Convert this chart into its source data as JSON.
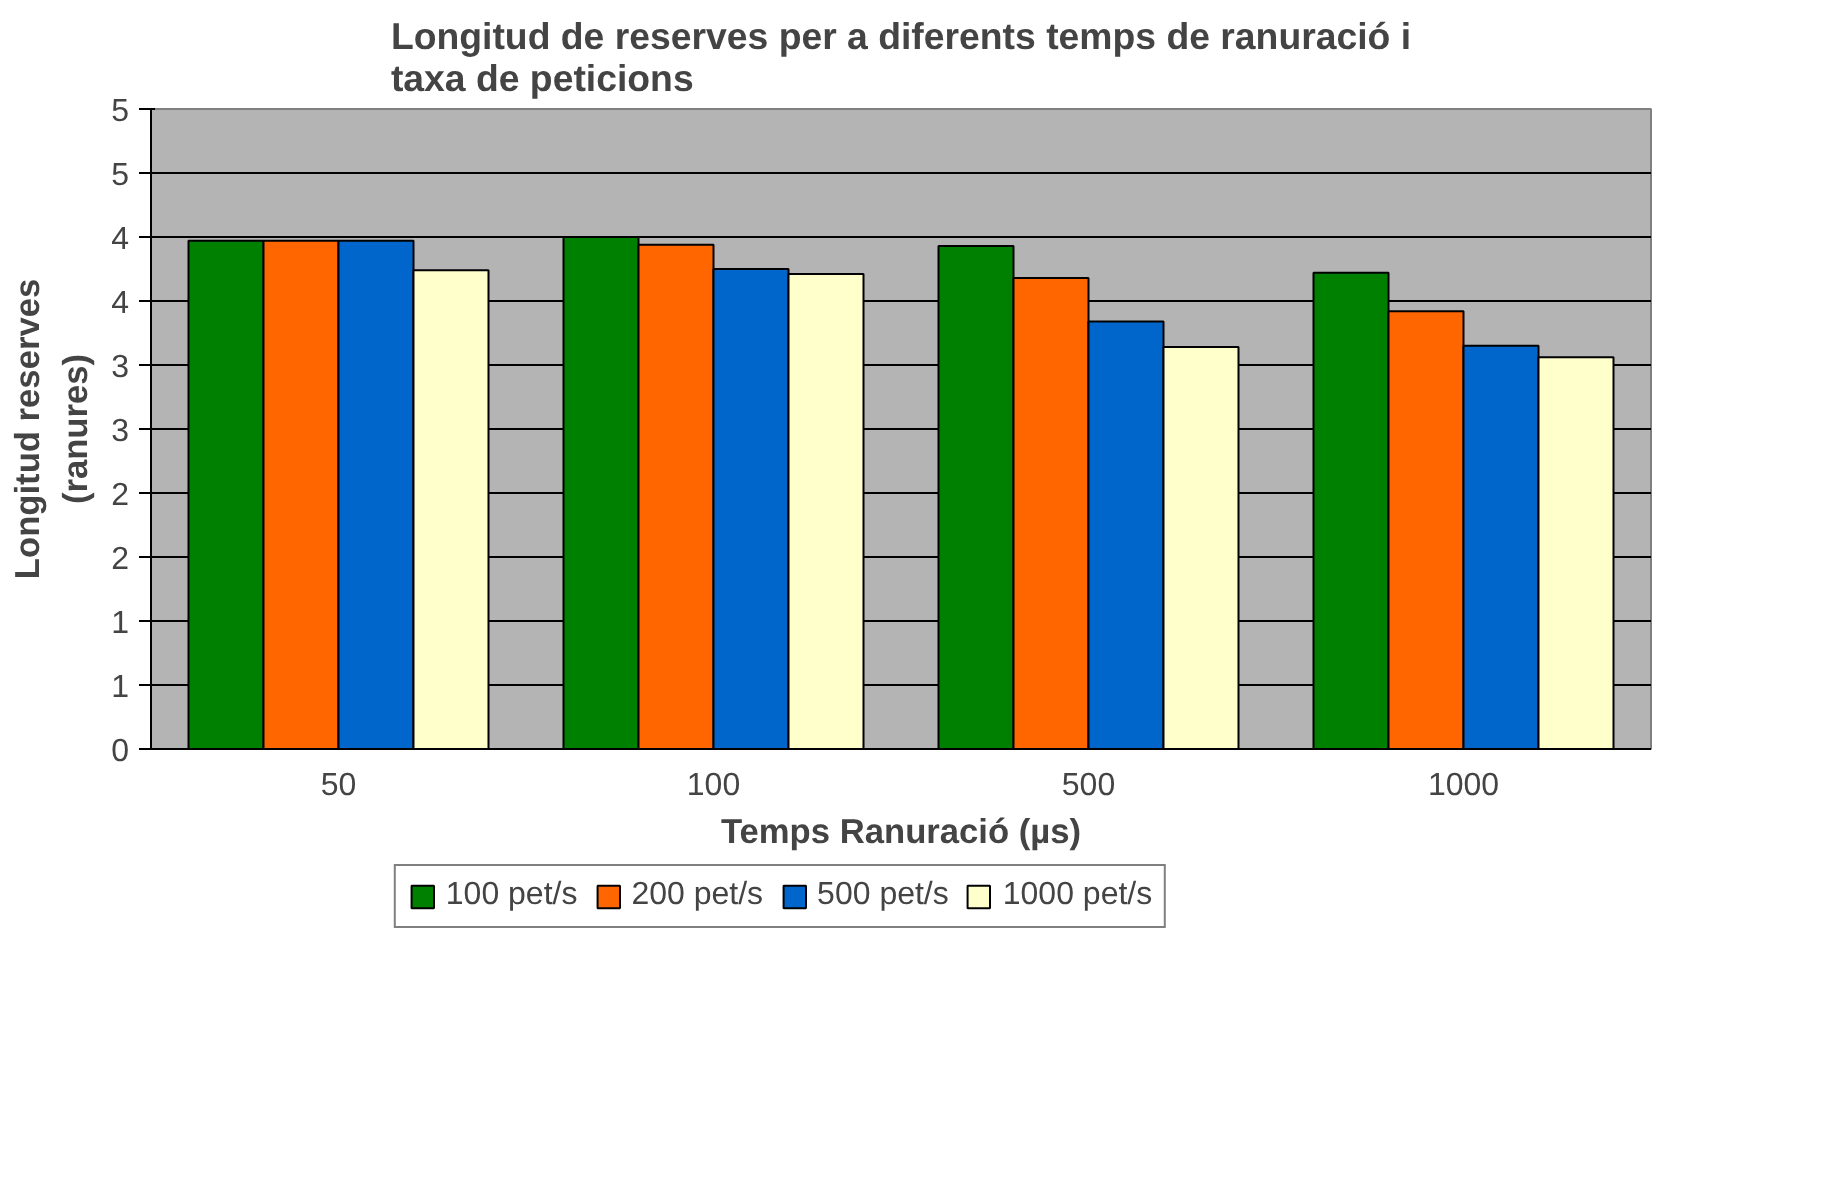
{
  "chart_data": {
    "type": "bar",
    "title": "Longitud de reserves per a diferents temps de ranuració i taxa de peticions",
    "xlabel": "Temps Ranuració (µs)",
    "ylabel": "Longitud reserves (ranures)",
    "categories": [
      "50",
      "100",
      "500",
      "1000"
    ],
    "series": [
      {
        "name": "100 pet/s",
        "color": "#008000",
        "values": [
          3.97,
          4.0,
          3.93,
          3.72
        ]
      },
      {
        "name": "200 pet/s",
        "color": "#ff6600",
        "values": [
          3.97,
          3.94,
          3.68,
          3.42
        ]
      },
      {
        "name": "500 pet/s",
        "color": "#0066cc",
        "values": [
          3.97,
          3.75,
          3.34,
          3.15
        ]
      },
      {
        "name": "1000 pet/s",
        "color": "#ffffcc",
        "values": [
          3.74,
          3.71,
          3.14,
          3.06
        ]
      }
    ],
    "ylim": [
      0,
      5
    ],
    "yticks": [
      0,
      {
        "value": 0.5,
        "label": "1"
      },
      1,
      {
        "value": 1.5,
        "label": "2"
      },
      2,
      {
        "value": 2.5,
        "label": "3"
      },
      3,
      {
        "value": 3.5,
        "label": "4"
      },
      4,
      {
        "value": 4.5,
        "label": "5"
      },
      5
    ],
    "grid": "y",
    "legend": "bottom"
  }
}
